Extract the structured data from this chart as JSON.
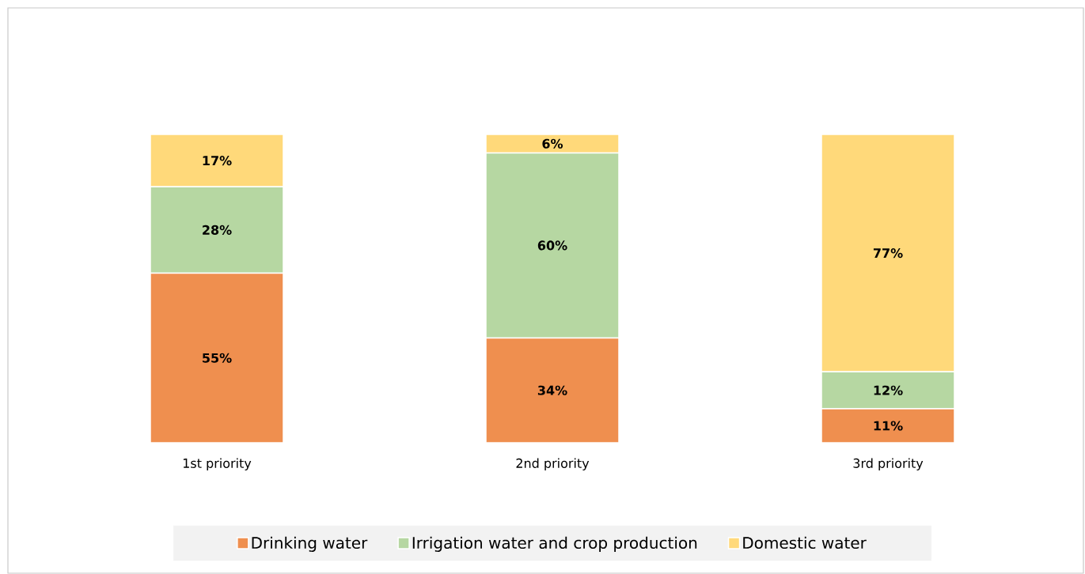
{
  "chart_data": {
    "type": "bar",
    "stacked": true,
    "categories": [
      "1st priority",
      "2nd priority",
      "3rd priority"
    ],
    "legend": "bottom",
    "series": [
      {
        "name": "Drinking water",
        "color": "#ef8f4f",
        "values": [
          55,
          34,
          11
        ],
        "value_labels": [
          "55%",
          "34%",
          "11%"
        ]
      },
      {
        "name": "Irrigation water and crop production",
        "color": "#b6d7a2",
        "values": [
          28,
          60,
          12
        ],
        "value_labels": [
          "28%",
          "60%",
          "12%"
        ]
      },
      {
        "name": "Domestic water",
        "color": "#ffd97a",
        "values": [
          17,
          6,
          77
        ],
        "value_labels": [
          "17%",
          "6%",
          "77%"
        ]
      }
    ]
  }
}
